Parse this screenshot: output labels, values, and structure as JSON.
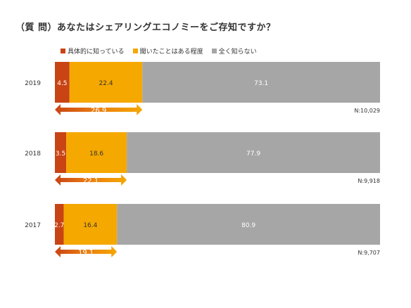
{
  "chart_data": {
    "type": "bar",
    "orientation": "horizontal",
    "stacked": true,
    "title": "（質 問）あなたはシェアリングエコノミーをご存知ですか？",
    "categories": [
      "2019",
      "2018",
      "2017"
    ],
    "series": [
      {
        "name": "具体的に知っている",
        "color": "#c84414",
        "values": [
          4.5,
          3.5,
          2.7
        ]
      },
      {
        "name": "聞いたことはある程度",
        "color": "#f5a800",
        "values": [
          22.4,
          18.6,
          16.4
        ]
      },
      {
        "name": "全く知らない",
        "color": "#a6a6a6",
        "values": [
          73.1,
          77.9,
          80.9
        ]
      }
    ],
    "awareness_totals": [
      26.9,
      22.1,
      19.1
    ],
    "sample_sizes": [
      "N:10,029",
      "N:9,918",
      "N:9,707"
    ],
    "xlim": [
      0,
      100
    ],
    "legend_position": "top-left",
    "grid": false
  }
}
